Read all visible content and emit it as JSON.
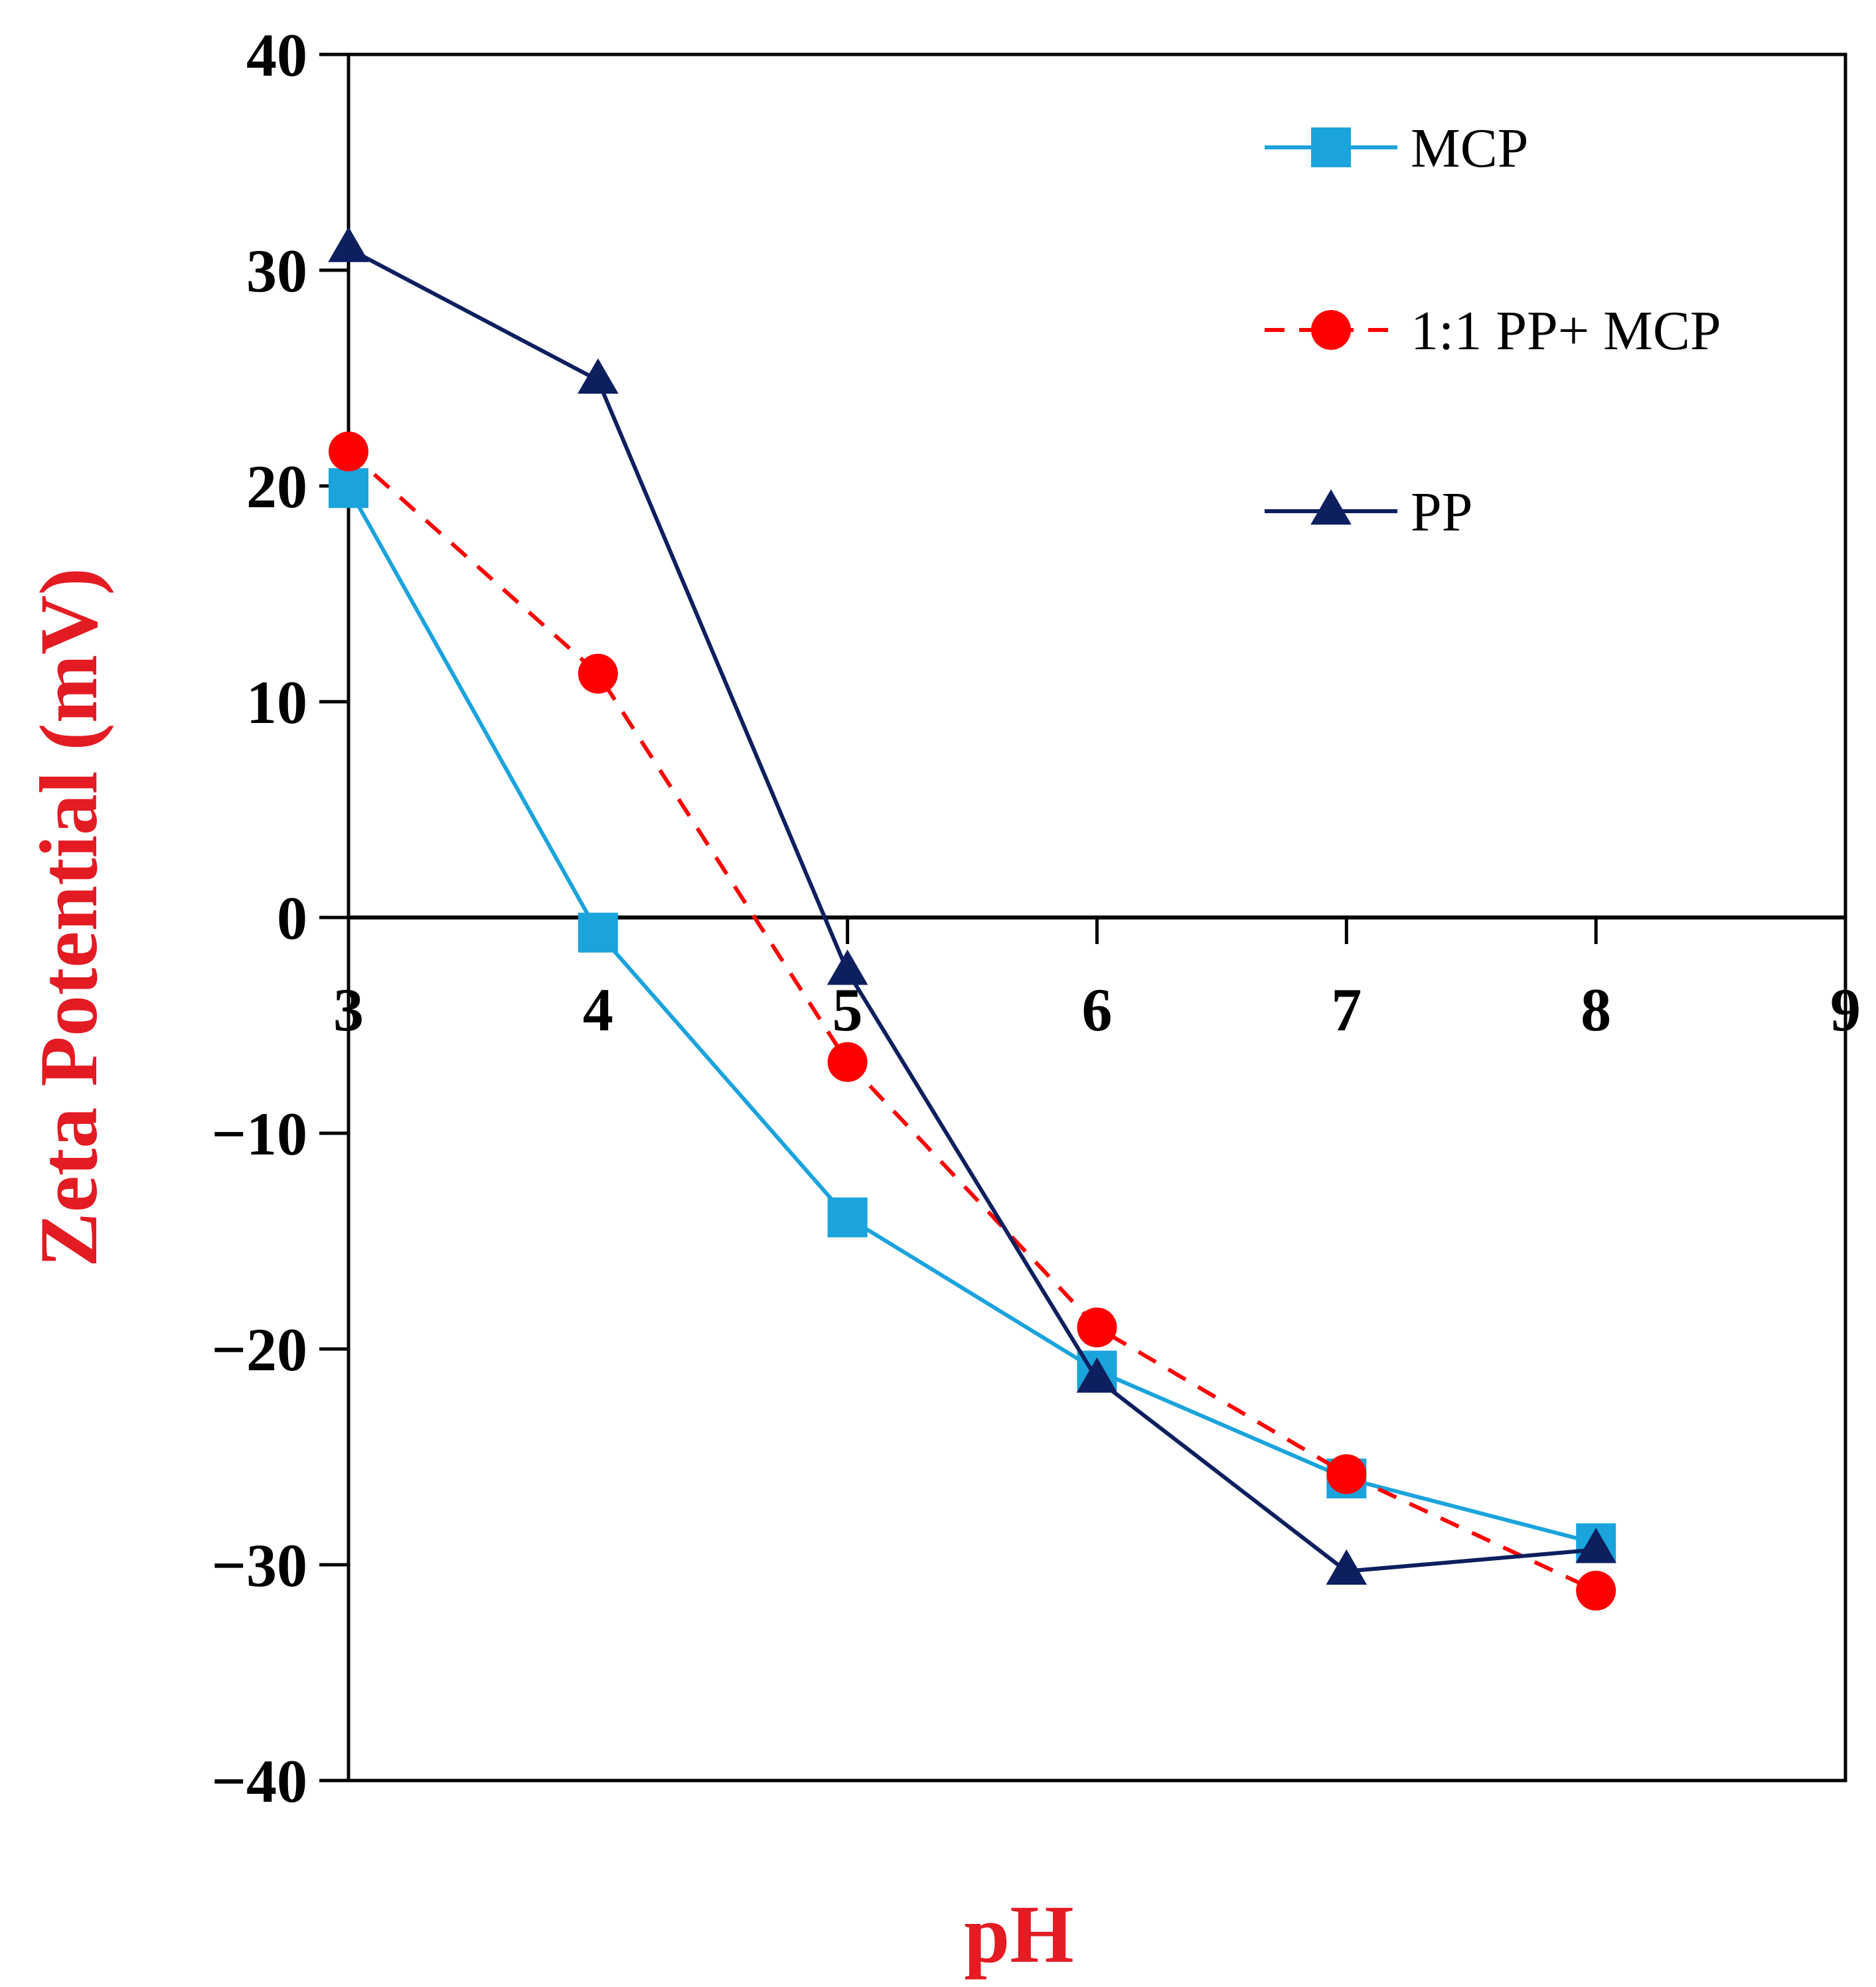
{
  "chart_data": {
    "type": "line",
    "xlabel": "pH",
    "ylabel": "Zeta Potential (mV)",
    "axis_title_color": "#e31b23",
    "xlim": [
      3,
      9
    ],
    "ylim": [
      -40,
      40
    ],
    "x_ticks": [
      3,
      4,
      5,
      6,
      7,
      8,
      9
    ],
    "y_ticks": [
      40,
      30,
      20,
      10,
      0,
      -10,
      -20,
      -30,
      -40
    ],
    "y_tick_labels": [
      "40",
      "30",
      "20",
      "10",
      "0",
      "−10",
      "−20",
      "−30",
      "−40"
    ],
    "x_axis_position": 0,
    "legend_position": "top-right",
    "grid": false,
    "series": [
      {
        "name": "MCP",
        "color": "#1ba3dc",
        "marker": "square",
        "dashed": false,
        "x": [
          3,
          4,
          5,
          6,
          7,
          8
        ],
        "y": [
          19.9,
          -0.7,
          -13.9,
          -21.0,
          -26.0,
          -29.0
        ]
      },
      {
        "name": "1:1 PP+ MCP",
        "color": "#ff0000",
        "marker": "circle",
        "dashed": true,
        "x": [
          3,
          4,
          5,
          6,
          7,
          8
        ],
        "y": [
          21.6,
          11.3,
          -6.7,
          -19.0,
          -25.8,
          -31.2
        ]
      },
      {
        "name": "PP",
        "color": "#0d1f5f",
        "marker": "triangle",
        "dashed": false,
        "x": [
          3,
          4,
          5,
          6,
          7,
          8
        ],
        "y": [
          31.0,
          24.9,
          -2.5,
          -21.4,
          -30.3,
          -29.3
        ]
      }
    ]
  }
}
